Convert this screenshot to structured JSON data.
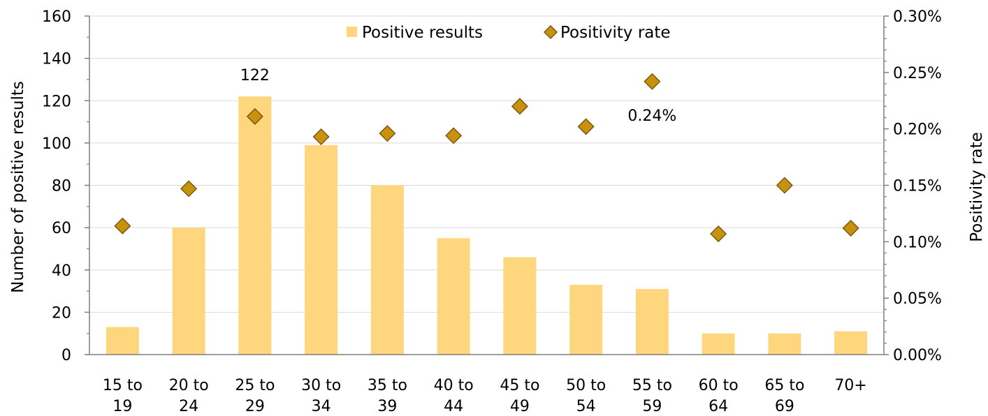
{
  "chart_data": {
    "type": "bar",
    "categories": [
      [
        "15 to",
        "19"
      ],
      [
        "20 to",
        "24"
      ],
      [
        "25 to",
        "29"
      ],
      [
        "30 to",
        "34"
      ],
      [
        "35 to",
        "39"
      ],
      [
        "40 to",
        "44"
      ],
      [
        "45 to",
        "49"
      ],
      [
        "50 to",
        "54"
      ],
      [
        "55 to",
        "59"
      ],
      [
        "60 to",
        "64"
      ],
      [
        "65 to",
        "69"
      ],
      [
        "70+"
      ]
    ],
    "series": [
      {
        "name": "Positive results",
        "type": "bar",
        "axis": "left",
        "values": [
          13,
          60,
          122,
          99,
          80,
          55,
          46,
          33,
          31,
          10,
          10,
          11
        ]
      },
      {
        "name": "Positivity rate",
        "type": "scatter",
        "axis": "right",
        "values": [
          0.114,
          0.147,
          0.211,
          0.193,
          0.196,
          0.194,
          0.22,
          0.202,
          0.242,
          0.107,
          0.15,
          0.112
        ]
      }
    ],
    "data_labels": [
      {
        "series": 0,
        "index": 2,
        "text": "122"
      },
      {
        "series": 1,
        "index": 8,
        "text": "0.24%"
      }
    ],
    "ylabel": "Number of positive results",
    "y2label": "Positivity rate",
    "ylim": [
      0,
      160
    ],
    "yticks": [
      0,
      20,
      40,
      60,
      80,
      100,
      120,
      140,
      160
    ],
    "y2lim": [
      0,
      0.3
    ],
    "y2ticks": [
      "0.00%",
      "0.05%",
      "0.10%",
      "0.15%",
      "0.20%",
      "0.25%",
      "0.30%"
    ],
    "grid": true,
    "legend_position": "top",
    "colors": {
      "bar": "#FDD67D",
      "marker_fill": "#C9920E",
      "marker_stroke": "#7A5A0A",
      "grid": "#D9D9D9",
      "axis": "#7F7F7F"
    }
  }
}
